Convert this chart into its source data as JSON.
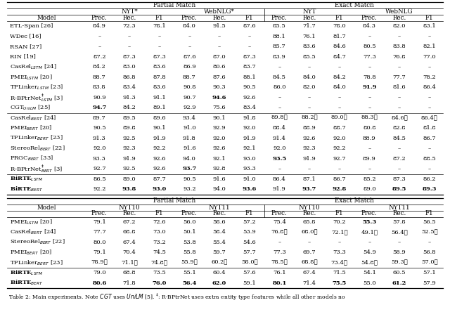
{
  "figsize": [
    6.4,
    4.71
  ],
  "dpi": 100,
  "t1_rows": [
    [
      "ETL-Span [26]",
      "84.9",
      "72.3",
      "78.1",
      "84.0",
      "91.5",
      "87.6",
      "85.5",
      "71.7",
      "78.0",
      "84.3",
      "82.0",
      "83.1"
    ],
    [
      "WDec [16]",
      "–",
      "–",
      "–",
      "–",
      "–",
      "–",
      "88.1",
      "76.1",
      "81.7",
      "–",
      "–",
      "–"
    ],
    [
      "RSAN [27]",
      "–",
      "–",
      "–",
      "–",
      "–",
      "–",
      "85.7",
      "83.6",
      "84.6",
      "80.5",
      "83.8",
      "82.1"
    ],
    [
      "RIN [19]",
      "87.2",
      "87.3",
      "87.3",
      "87.6",
      "87.0",
      "87.3",
      "83.9",
      "85.5",
      "84.7",
      "77.3",
      "76.8",
      "77.0"
    ],
    [
      "CasRel$_{LSTM}$ [24]",
      "84.2",
      "83.0",
      "83.6",
      "86.9",
      "80.6",
      "83.7",
      "–",
      "–",
      "–",
      "–",
      "–",
      "–"
    ],
    [
      "PMEI$_{LSTM}$ [20]",
      "88.7",
      "86.8",
      "87.8",
      "88.7",
      "87.6",
      "88.1",
      "84.5",
      "84.0",
      "84.2",
      "78.8",
      "77.7",
      "78.2"
    ],
    [
      "TPLinker$_{LSTM}$ [23]",
      "83.8",
      "83.4",
      "83.6",
      "90.8",
      "90.3",
      "90.5",
      "86.0",
      "82.0",
      "84.0",
      "91.9",
      "81.6",
      "86.4"
    ],
    [
      "R-BPtrNet$_{LSTM}^{\\ddagger}$ [3]",
      "90.9",
      "91.3",
      "91.1",
      "90.7",
      "94.6",
      "92.6",
      "–",
      "–",
      "–",
      "–",
      "–",
      "–"
    ],
    [
      "CGT$_{UniLM}$ [25]",
      "94.7",
      "84.2",
      "89.1",
      "92.9",
      "75.6",
      "83.4",
      "–",
      "–",
      "–",
      "–",
      "–",
      "–"
    ],
    [
      "CasRel$_{BERT}$ [24]",
      "89.7",
      "89.5",
      "89.6",
      "93.4",
      "90.1",
      "91.8",
      "89.8★",
      "88.2★",
      "89.0★",
      "88.3★",
      "84.6★",
      "86.4★"
    ],
    [
      "PMEI$_{BERT}$ [20]",
      "90.5",
      "89.8",
      "90.1",
      "91.0",
      "92.9",
      "92.0",
      "88.4",
      "88.9",
      "88.7",
      "80.8",
      "82.8",
      "81.8"
    ],
    [
      "TPLinker$_{BERT}$ [23]",
      "91.3",
      "92.5",
      "91.9",
      "91.8",
      "92.0",
      "91.9",
      "91.4",
      "92.6",
      "92.0",
      "88.9",
      "84.5",
      "86.7"
    ],
    [
      "StereoRel$_{BERT}$ [22]",
      "92.0",
      "92.3",
      "92.2",
      "91.6",
      "92.6",
      "92.1",
      "92.0",
      "92.3",
      "92.2",
      "–",
      "–",
      "–"
    ],
    [
      "PRGC$_{BERT}$ [33]",
      "93.3",
      "91.9",
      "92.6",
      "94.0",
      "92.1",
      "93.0",
      "93.5",
      "91.9",
      "92.7",
      "89.9",
      "87.2",
      "88.5"
    ],
    [
      "R-BPtrNet$_{BERT}^{\\ddagger}$ [3]",
      "92.7",
      "92.5",
      "92.6",
      "93.7",
      "92.8",
      "93.3",
      "–",
      "–",
      "–",
      "–",
      "–",
      "–"
    ],
    [
      "BiRTE$_{LSTM}$",
      "86.5",
      "89.0",
      "87.7",
      "90.5",
      "91.6",
      "91.0",
      "86.4",
      "87.1",
      "86.7",
      "85.2",
      "87.3",
      "86.2"
    ],
    [
      "BiRTE$_{BERT}$",
      "92.2",
      "93.8",
      "93.0",
      "93.2",
      "94.0",
      "93.6",
      "91.9",
      "93.7",
      "92.8",
      "89.0",
      "89.5",
      "89.3"
    ]
  ],
  "t1_bold": {
    "6_10": true,
    "7_5": true,
    "8_1": true,
    "13_7": true,
    "14_4": true,
    "15_0": true,
    "16_0": true,
    "16_2": true,
    "16_3": true,
    "16_6": true,
    "16_8": true,
    "16_9": true,
    "16_11": true,
    "16_12": true
  },
  "t1_star": {
    "6_10": true,
    "7_5": true,
    "8_1": true,
    "13_7": true,
    "14_4": true,
    "16_2": true,
    "16_6": true,
    "16_8": true,
    "16_9": true,
    "16_11": true,
    "16_12": true
  },
  "t2_rows": [
    [
      "PMEI$_{LSTM}$ [20]",
      "79.1",
      "67.2",
      "72.6",
      "56.0",
      "58.6",
      "57.2",
      "75.4",
      "65.8",
      "70.2",
      "55.3",
      "57.8",
      "56.5"
    ],
    [
      "CasRel$_{BERT}$ [24]",
      "77.7",
      "68.8",
      "73.0",
      "50.1",
      "58.4",
      "53.9",
      "76.8★",
      "68.0★",
      "72.1★",
      "49.1★",
      "56.4★",
      "52.5★"
    ],
    [
      "StereoRel$_{BERT}$ [22]",
      "80.0",
      "67.4",
      "73.2",
      "53.8",
      "55.4",
      "54.6",
      "–",
      "–",
      "–",
      "–",
      "–",
      "–"
    ],
    [
      "PMEI$_{BERT}$ [20]",
      "79.1",
      "70.4",
      "74.5",
      "55.8",
      "59.7",
      "57.7",
      "77.3",
      "69.7",
      "73.3",
      "54.9",
      "58.9",
      "56.8"
    ],
    [
      "TPLinker$_{BERT}$ [23]",
      "78.9★",
      "71.1★",
      "74.8★",
      "55.9★",
      "60.2★",
      "58.0★",
      "78.5★",
      "68.8★",
      "73.4★",
      "54.8★",
      "59.3★",
      "57.0★"
    ],
    [
      "BiRTE$_{LSTM}$",
      "79.0",
      "68.8",
      "73.5",
      "55.1",
      "60.4",
      "57.6",
      "76.1",
      "67.4",
      "71.5",
      "54.1",
      "60.5",
      "57.1"
    ],
    [
      "BiRTE$_{BERT}$",
      "80.6",
      "71.8",
      "76.0",
      "56.4",
      "62.0",
      "59.1",
      "80.1",
      "71.4",
      "75.5",
      "55.0",
      "61.2",
      "57.9"
    ]
  ],
  "t2_bold": {
    "0_10": true,
    "5_0": true,
    "6_0": true,
    "6_1": true,
    "6_3": true,
    "6_4": true,
    "6_5": true,
    "6_7": true,
    "6_9": true,
    "6_11": true
  },
  "t2_star": {
    "0_10": true,
    "6_1": true,
    "6_3": true,
    "6_4": true,
    "6_5": true,
    "6_7": true,
    "6_9": true,
    "6_11": true
  }
}
